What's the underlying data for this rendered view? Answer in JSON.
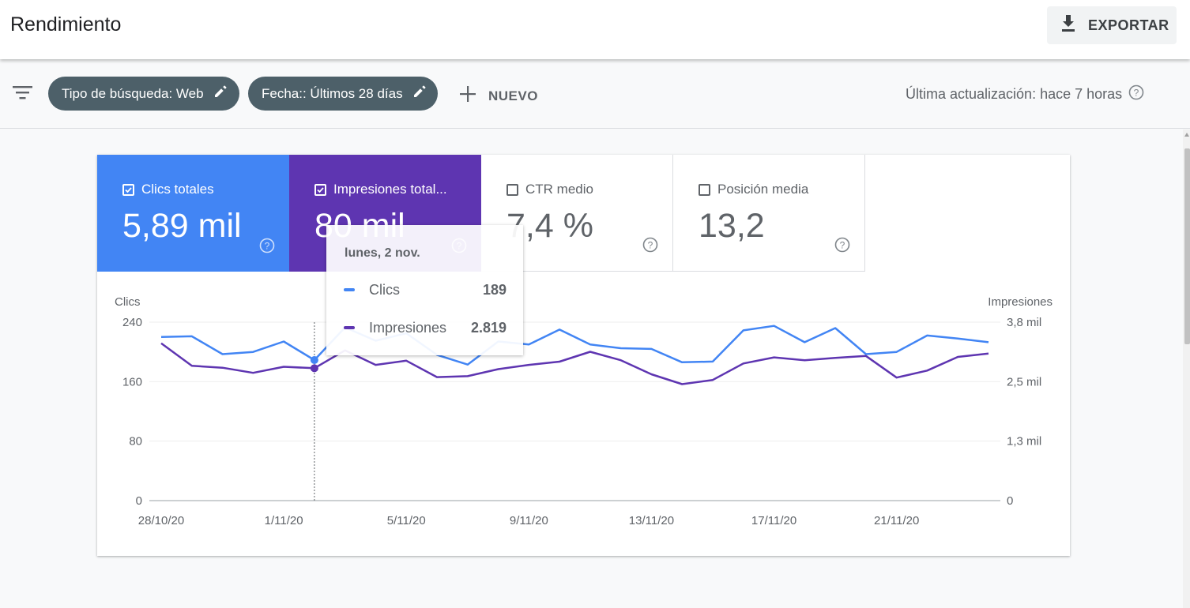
{
  "header": {
    "title": "Rendimiento",
    "export_label": "EXPORTAR"
  },
  "filters": {
    "chips": [
      {
        "label": "Tipo de búsqueda: Web"
      },
      {
        "label": "Fecha:: Últimos 28 días"
      }
    ],
    "new_label": "NUEVO",
    "last_update": "Última actualización: hace 7 horas"
  },
  "metrics": [
    {
      "label": "Clics totales",
      "value": "5,89 mil",
      "checked": true,
      "color": "#4285f4"
    },
    {
      "label": "Impresiones total...",
      "value": "80 mil",
      "checked": true,
      "color": "#5e35b1"
    },
    {
      "label": "CTR medio",
      "value": "7,4 %",
      "checked": false
    },
    {
      "label": "Posición media",
      "value": "13,2",
      "checked": false
    }
  ],
  "tooltip": {
    "date": "lunes, 2 nov.",
    "rows": [
      {
        "name": "Clics",
        "value": "189",
        "color": "#4285f4"
      },
      {
        "name": "Impresiones",
        "value": "2.819",
        "color": "#5e35b1"
      }
    ]
  },
  "chart_data": {
    "type": "line",
    "left_axis_label": "Clics",
    "right_axis_label": "Impresiones",
    "left_ticks": [
      "0",
      "80",
      "160",
      "240"
    ],
    "right_ticks": [
      "0",
      "1,3 mil",
      "2,5 mil",
      "3,8 mil"
    ],
    "left_ylim": [
      0,
      240
    ],
    "right_ylim": [
      0,
      3800
    ],
    "x_tick_labels": [
      "28/10/20",
      "1/11/20",
      "5/11/20",
      "9/11/20",
      "13/11/20",
      "17/11/20",
      "21/11/20"
    ],
    "x": [
      "28/10/20",
      "29/10/20",
      "30/10/20",
      "31/10/20",
      "1/11/20",
      "2/11/20",
      "3/11/20",
      "4/11/20",
      "5/11/20",
      "6/11/20",
      "7/11/20",
      "8/11/20",
      "9/11/20",
      "10/11/20",
      "11/11/20",
      "12/11/20",
      "13/11/20",
      "14/11/20",
      "15/11/20",
      "16/11/20",
      "17/11/20",
      "18/11/20",
      "19/11/20",
      "20/11/20",
      "21/11/20",
      "22/11/20",
      "23/11/20",
      "24/11/20"
    ],
    "series": [
      {
        "name": "Clics",
        "axis": "left",
        "color": "#4285f4",
        "values": [
          220,
          221,
          197,
          200,
          214,
          189,
          233,
          215,
          225,
          196,
          183,
          214,
          210,
          230,
          210,
          205,
          204,
          186,
          187,
          229,
          235,
          213,
          232,
          197,
          200,
          222,
          218,
          213
        ]
      },
      {
        "name": "Impresiones",
        "axis": "right",
        "color": "#5e35b1",
        "values": [
          3350,
          2870,
          2830,
          2720,
          2850,
          2819,
          3200,
          2890,
          2980,
          2630,
          2650,
          2800,
          2890,
          2960,
          3170,
          2990,
          2690,
          2480,
          2570,
          2920,
          3050,
          2990,
          3040,
          3080,
          2620,
          2770,
          3060,
          3130
        ]
      }
    ],
    "highlight_index": 5,
    "grid": true
  }
}
